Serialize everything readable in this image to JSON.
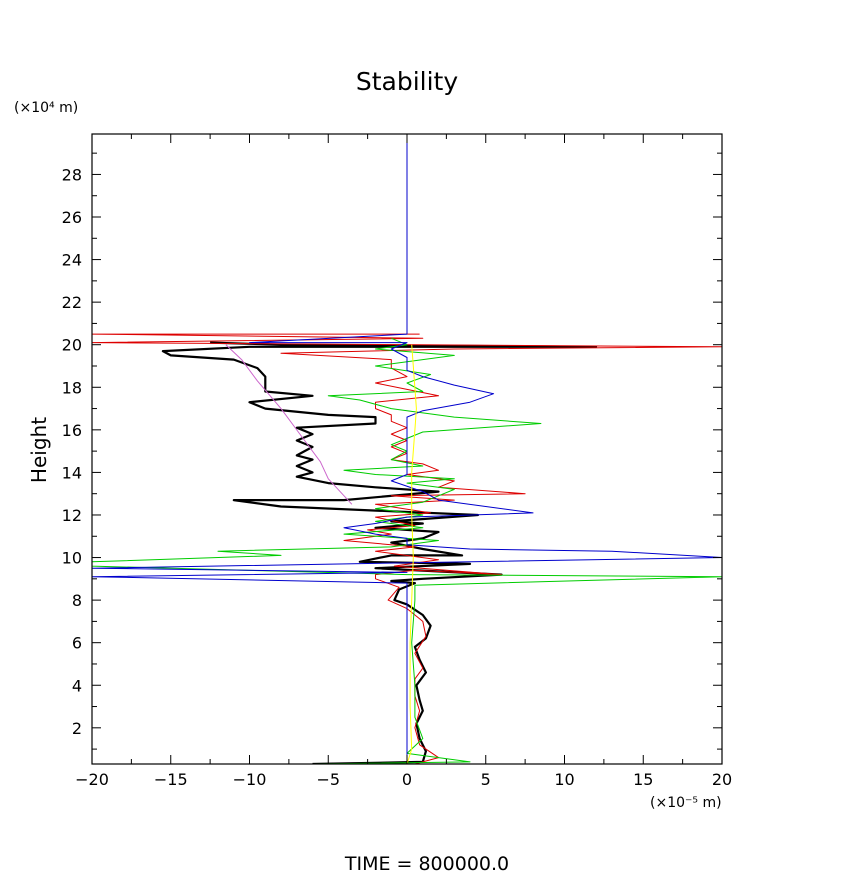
{
  "chart_data": {
    "type": "line",
    "title": "Stability",
    "xlabel": "",
    "ylabel": "Height",
    "x_unit_label": "(×10⁻⁵ m)",
    "y_unit_label": "(×10⁴ m)",
    "footer": "TIME  =  800000.0",
    "xlim": [
      -20,
      20
    ],
    "ylim": [
      0.3,
      29.9
    ],
    "x_ticks": [
      -20,
      -15,
      -10,
      -5,
      0,
      5,
      10,
      15,
      20
    ],
    "y_ticks": [
      2,
      4,
      6,
      8,
      10,
      12,
      14,
      16,
      18,
      20,
      22,
      24,
      26,
      28
    ],
    "x_tick_labels": [
      "−20",
      "−15",
      "−10",
      "−5",
      "0",
      "5",
      "10",
      "15",
      "20"
    ],
    "y_tick_labels": [
      "2",
      "4",
      "6",
      "8",
      "10",
      "12",
      "14",
      "16",
      "18",
      "20",
      "22",
      "24",
      "26",
      "28"
    ],
    "grid": false,
    "legend": "none",
    "series": [
      {
        "color": "#000000",
        "width": 2.2,
        "points": [
          [
            -6,
            0.3
          ],
          [
            1,
            0.4
          ],
          [
            1.2,
            0.9
          ],
          [
            0.8,
            1.5
          ],
          [
            0.6,
            2.2
          ],
          [
            1.0,
            2.8
          ],
          [
            0.8,
            3.3
          ],
          [
            0.6,
            4.0
          ],
          [
            1.2,
            4.6
          ],
          [
            0.8,
            5.2
          ],
          [
            0.5,
            5.8
          ],
          [
            1.2,
            6.2
          ],
          [
            1.5,
            6.8
          ],
          [
            1.0,
            7.3
          ],
          [
            0,
            7.8
          ],
          [
            -0.8,
            8.0
          ],
          [
            -0.5,
            8.5
          ],
          [
            0.5,
            8.8
          ],
          [
            -1,
            8.9
          ],
          [
            1,
            9.0
          ],
          [
            6,
            9.2
          ],
          [
            -2,
            9.5
          ],
          [
            4,
            9.7
          ],
          [
            -3,
            9.8
          ],
          [
            -1,
            10.1
          ],
          [
            3.5,
            10.1
          ],
          [
            1,
            10.4
          ],
          [
            -1,
            10.7
          ],
          [
            1,
            10.9
          ],
          [
            2,
            11.2
          ],
          [
            -2,
            11.4
          ],
          [
            1,
            11.6
          ],
          [
            -1,
            11.7
          ],
          [
            4.5,
            12.0
          ],
          [
            -8,
            12.4
          ],
          [
            -11,
            12.7
          ],
          [
            -4,
            12.7
          ],
          [
            2,
            13.1
          ],
          [
            -2,
            13.3
          ],
          [
            -5,
            13.5
          ],
          [
            -7,
            13.8
          ],
          [
            -6,
            14.0
          ],
          [
            -7,
            14.3
          ],
          [
            -6,
            14.6
          ],
          [
            -7,
            14.8
          ],
          [
            -6,
            15.2
          ],
          [
            -7,
            15.5
          ],
          [
            -6,
            15.8
          ],
          [
            -7,
            16.1
          ],
          [
            -2,
            16.3
          ],
          [
            -2,
            16.6
          ],
          [
            -5,
            16.7
          ],
          [
            -9,
            17.0
          ],
          [
            -10,
            17.3
          ],
          [
            -6,
            17.6
          ],
          [
            -9,
            17.8
          ],
          [
            -9,
            18.1
          ],
          [
            -9,
            18.5
          ],
          [
            -9.5,
            18.9
          ],
          [
            -11,
            19.3
          ],
          [
            -15,
            19.5
          ],
          [
            -15.5,
            19.7
          ],
          [
            -10,
            19.9
          ],
          [
            12,
            19.9
          ],
          [
            -8,
            20.0
          ],
          [
            -12.5,
            20.1
          ]
        ]
      },
      {
        "color": "#dd0000",
        "width": 1,
        "points": [
          [
            0.5,
            0.3
          ],
          [
            2,
            0.6
          ],
          [
            0.8,
            1.2
          ],
          [
            0.5,
            2.0
          ],
          [
            0.8,
            2.8
          ],
          [
            0.5,
            3.5
          ],
          [
            0.5,
            4.3
          ],
          [
            1.0,
            4.8
          ],
          [
            0.5,
            5.5
          ],
          [
            1.2,
            6.3
          ],
          [
            1.0,
            7.0
          ],
          [
            0,
            7.6
          ],
          [
            -1.2,
            8.0
          ],
          [
            -0.5,
            8.6
          ],
          [
            -2,
            9.0
          ],
          [
            -2,
            9.2
          ],
          [
            0.5,
            9.4
          ],
          [
            6,
            9.2
          ],
          [
            -0.8,
            9.6
          ],
          [
            2,
            9.9
          ],
          [
            -2,
            10.3
          ],
          [
            0.5,
            10.5
          ],
          [
            -4,
            10.8
          ],
          [
            -1,
            11.1
          ],
          [
            -2.5,
            11.3
          ],
          [
            0.5,
            11.5
          ],
          [
            -2,
            11.9
          ],
          [
            1.5,
            12.1
          ],
          [
            -2,
            12.5
          ],
          [
            3,
            12.7
          ],
          [
            -1,
            12.9
          ],
          [
            7.5,
            13.0
          ],
          [
            2,
            13.3
          ],
          [
            3,
            13.6
          ],
          [
            0,
            13.9
          ],
          [
            2,
            14.1
          ],
          [
            1,
            14.4
          ],
          [
            -1,
            14.6
          ],
          [
            0,
            14.9
          ],
          [
            -1,
            15.2
          ],
          [
            0,
            15.5
          ],
          [
            -1,
            15.8
          ],
          [
            0,
            16.1
          ],
          [
            -1,
            16.4
          ],
          [
            -1,
            16.7
          ],
          [
            -2,
            17.0
          ],
          [
            -2,
            17.3
          ],
          [
            2,
            17.6
          ],
          [
            0,
            17.9
          ],
          [
            -2,
            18.2
          ],
          [
            0,
            18.5
          ],
          [
            -1,
            18.9
          ],
          [
            -1,
            19.3
          ],
          [
            -8,
            19.6
          ],
          [
            3,
            19.8
          ],
          [
            20,
            19.9
          ],
          [
            -20,
            20.1
          ],
          [
            1,
            20.3
          ],
          [
            -20,
            20.5
          ],
          [
            0.8,
            20.5
          ]
        ]
      },
      {
        "color": "#00cc00",
        "width": 1,
        "points": [
          [
            -6,
            0.3
          ],
          [
            4,
            0.4
          ],
          [
            0,
            0.8
          ],
          [
            1,
            1.5
          ],
          [
            0.5,
            2.5
          ],
          [
            0.5,
            4.0
          ],
          [
            0.3,
            6.0
          ],
          [
            0.5,
            8.0
          ],
          [
            0.5,
            8.7
          ],
          [
            20,
            9.1
          ],
          [
            0,
            9.2
          ],
          [
            -20,
            9.6
          ],
          [
            -20,
            9.8
          ],
          [
            -8,
            10.1
          ],
          [
            -12,
            10.3
          ],
          [
            -1,
            10.5
          ],
          [
            2,
            10.8
          ],
          [
            -4,
            11.1
          ],
          [
            1,
            11.4
          ],
          [
            -2,
            11.7
          ],
          [
            1,
            12.0
          ],
          [
            -2,
            12.3
          ],
          [
            1,
            12.6
          ],
          [
            2,
            12.9
          ],
          [
            3,
            13.2
          ],
          [
            0,
            13.5
          ],
          [
            3,
            13.7
          ],
          [
            -2,
            13.9
          ],
          [
            -4,
            14.1
          ],
          [
            1,
            14.3
          ],
          [
            -1,
            14.6
          ],
          [
            0,
            15.0
          ],
          [
            -1,
            15.3
          ],
          [
            0,
            15.6
          ],
          [
            1,
            15.9
          ],
          [
            8.5,
            16.3
          ],
          [
            3,
            16.6
          ],
          [
            -1,
            17.0
          ],
          [
            -3,
            17.4
          ],
          [
            -5,
            17.6
          ],
          [
            1,
            17.8
          ],
          [
            0,
            18.2
          ],
          [
            1.5,
            18.6
          ],
          [
            -2,
            19.0
          ],
          [
            3,
            19.5
          ],
          [
            -2,
            19.8
          ],
          [
            0,
            20.0
          ],
          [
            -1,
            20.3
          ]
        ]
      },
      {
        "color": "#0000cc",
        "width": 1,
        "points": [
          [
            0,
            29.9
          ],
          [
            0,
            20.5
          ],
          [
            -10,
            20.1
          ],
          [
            0,
            20.1
          ],
          [
            -1,
            19.8
          ],
          [
            0,
            19.4
          ],
          [
            0,
            18.8
          ],
          [
            1,
            18.5
          ],
          [
            3,
            18.1
          ],
          [
            5.5,
            17.7
          ],
          [
            4,
            17.3
          ],
          [
            1,
            16.9
          ],
          [
            0,
            16.6
          ],
          [
            0,
            16.2
          ],
          [
            0,
            15.8
          ],
          [
            0,
            15.0
          ],
          [
            0,
            14.2
          ],
          [
            0,
            13.9
          ],
          [
            -1,
            13.6
          ],
          [
            1,
            13.1
          ],
          [
            2,
            12.7
          ],
          [
            8,
            12.1
          ],
          [
            0,
            11.9
          ],
          [
            -2,
            11.6
          ],
          [
            -4,
            11.4
          ],
          [
            -2,
            11.1
          ],
          [
            0,
            10.9
          ],
          [
            0,
            10.6
          ],
          [
            4,
            10.4
          ],
          [
            13,
            10.3
          ],
          [
            20,
            10.0
          ],
          [
            -20,
            9.5
          ],
          [
            0,
            9.3
          ],
          [
            -20,
            9.1
          ],
          [
            0,
            8.8
          ],
          [
            0,
            7.0
          ],
          [
            0,
            5.0
          ],
          [
            0,
            3.0
          ],
          [
            0,
            1.0
          ],
          [
            0,
            0.3
          ]
        ]
      },
      {
        "color": "#ffff00",
        "width": 1,
        "points": [
          [
            0,
            0.3
          ],
          [
            0.3,
            1.0
          ],
          [
            0.2,
            3.0
          ],
          [
            0.2,
            6.0
          ],
          [
            0.3,
            8.0
          ],
          [
            0.4,
            10.0
          ],
          [
            0.3,
            12.0
          ],
          [
            0.3,
            14.0
          ],
          [
            0.5,
            16.0
          ],
          [
            0.6,
            17.0
          ],
          [
            0.4,
            19.0
          ],
          [
            0.3,
            20.0
          ]
        ]
      },
      {
        "color": "#cc66cc",
        "width": 1,
        "points": [
          [
            -3.5,
            12.5
          ],
          [
            -5,
            13.7
          ],
          [
            -5.5,
            14.5
          ],
          [
            -6.5,
            15.5
          ],
          [
            -8,
            17.0
          ],
          [
            -9.5,
            18.3
          ],
          [
            -10.5,
            19.3
          ],
          [
            -11.5,
            20.0
          ]
        ]
      }
    ]
  }
}
